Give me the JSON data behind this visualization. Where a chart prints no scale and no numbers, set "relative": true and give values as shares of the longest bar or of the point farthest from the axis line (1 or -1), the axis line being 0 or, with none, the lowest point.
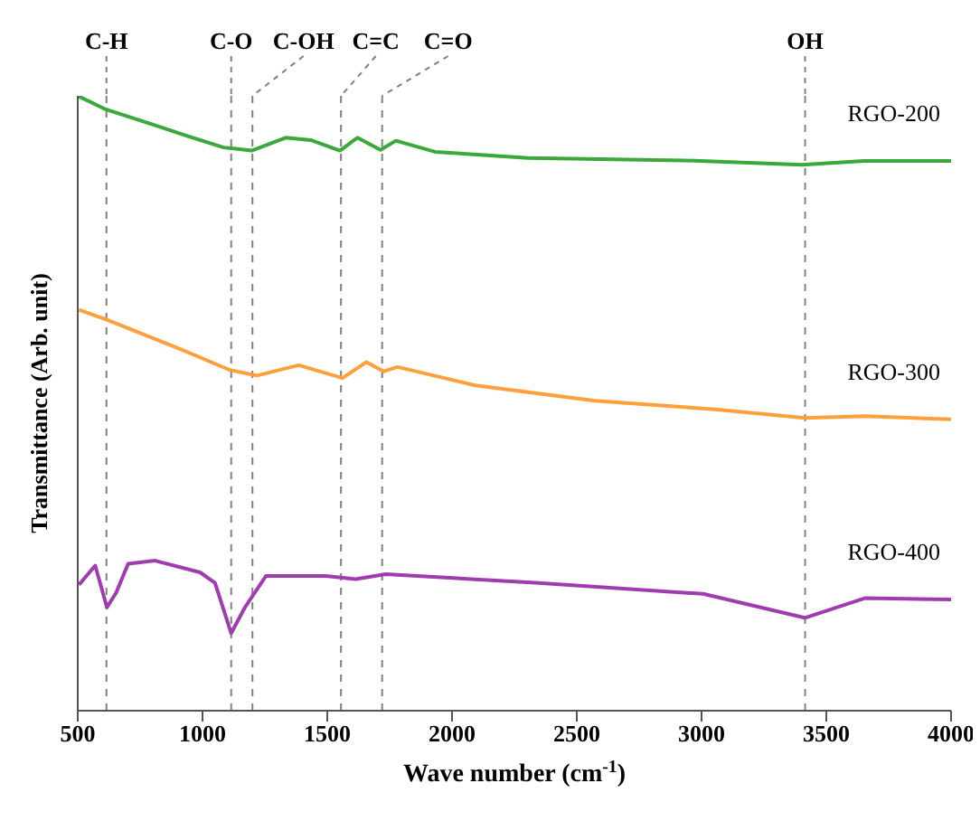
{
  "chart_data": {
    "type": "line",
    "relative": true,
    "xlabel": "Wave number (cm$^{-1}$)",
    "ylabel": "Transmittance (Arb. unit)",
    "xlim": [
      500,
      4000
    ],
    "xticks": [
      500,
      1000,
      1500,
      2000,
      2500,
      3000,
      3500,
      4000
    ],
    "grid": false,
    "legend": false,
    "marker": "none",
    "line_style": "solid",
    "ref_lines": [
      {
        "axis": "x",
        "value": 615,
        "label": "C-H",
        "line_style": "dashed",
        "color": "#808080"
      },
      {
        "axis": "x",
        "value": 1115,
        "label": "C-O",
        "line_style": "dashed",
        "color": "#808080"
      },
      {
        "axis": "x",
        "value": 1200,
        "label": "C-OH",
        "line_style": "dashed",
        "color": "#808080"
      },
      {
        "axis": "x",
        "value": 1555,
        "label": "C=C",
        "line_style": "dashed",
        "color": "#808080"
      },
      {
        "axis": "x",
        "value": 1720,
        "label": "C=O",
        "line_style": "dashed",
        "color": "#808080"
      },
      {
        "axis": "x",
        "value": 3415,
        "label": "OH",
        "line_style": "dashed",
        "color": "#808080"
      }
    ],
    "series": [
      {
        "name": "RGO-200",
        "color": "#3aa83a",
        "x": [
          500,
          612,
          811,
          936,
          1085,
          1197,
          1335,
          1434,
          1551,
          1621,
          1713,
          1775,
          1932,
          2306,
          2929,
          3402,
          3651,
          4000
        ],
        "values": [
          1.0,
          0.978,
          0.952,
          0.935,
          0.916,
          0.911,
          0.932,
          0.928,
          0.911,
          0.932,
          0.912,
          0.927,
          0.909,
          0.899,
          0.895,
          0.888,
          0.894,
          0.894
        ]
      },
      {
        "name": "RGO-300",
        "color": "#ffa03c",
        "x": [
          505,
          617,
          918,
          1110,
          1218,
          1386,
          1561,
          1657,
          1726,
          1782,
          2094,
          2574,
          3054,
          3414,
          3654,
          4000
        ],
        "values": [
          0.652,
          0.636,
          0.587,
          0.554,
          0.545,
          0.562,
          0.541,
          0.567,
          0.552,
          0.559,
          0.529,
          0.504,
          0.49,
          0.476,
          0.479,
          0.474
        ]
      },
      {
        "name": "RGO-400",
        "color": "#a03cb0",
        "x": [
          505,
          570,
          617,
          654,
          702,
          810,
          990,
          1050,
          1115,
          1170,
          1254,
          1494,
          1614,
          1734,
          2334,
          3006,
          3414,
          3654,
          4000
        ],
        "values": [
          0.205,
          0.236,
          0.168,
          0.192,
          0.239,
          0.244,
          0.225,
          0.208,
          0.126,
          0.168,
          0.219,
          0.219,
          0.214,
          0.222,
          0.208,
          0.19,
          0.151,
          0.183,
          0.181
        ]
      }
    ]
  }
}
